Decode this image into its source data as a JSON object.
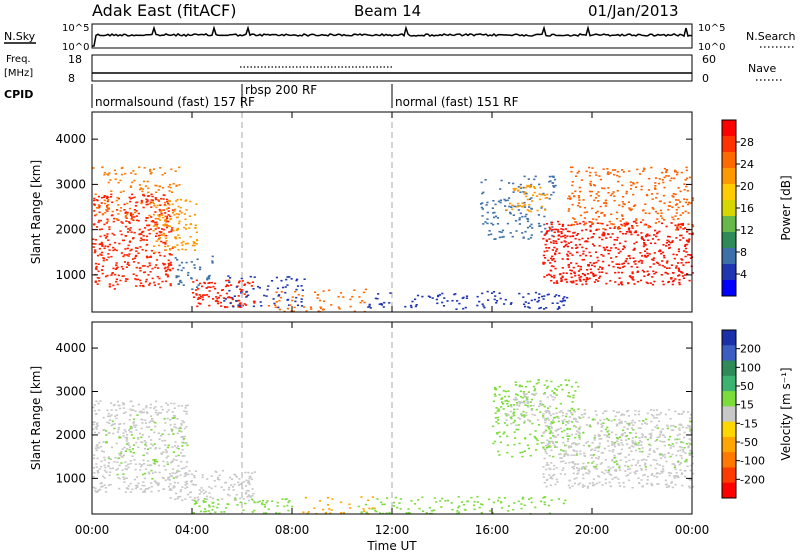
{
  "header": {
    "title": "Adak East (fitACF)",
    "beam": "Beam 14",
    "date": "01/Jan/2013"
  },
  "top_panels": {
    "nsky_label": "N.Sky",
    "nsearch_label": "N.Search",
    "freq_label_1": "Freq.",
    "freq_label_2": "[MHz]",
    "nave_label": "Nave",
    "cpid_label": "CPID",
    "noise_ticks_left": [
      "10^5",
      "10^0"
    ],
    "noise_ticks_right": [
      "10^5",
      "10^0"
    ],
    "freq_ticks_left": [
      "18",
      "8"
    ],
    "nave_ticks_right": [
      "60",
      "0"
    ]
  },
  "cpid_segments": [
    {
      "label": "normalsound (fast) 157 RF",
      "start_hour": 0,
      "end_hour": 6
    },
    {
      "label": "rbsp 200 RF",
      "start_hour": 6,
      "end_hour": 12
    },
    {
      "label": "normal (fast) 151 RF",
      "start_hour": 12,
      "end_hour": 24
    }
  ],
  "power_colorbar": {
    "title": "Power [dB]",
    "ticks": [
      "28",
      "24",
      "20",
      "16",
      "12",
      "8",
      "4"
    ],
    "colors": [
      "#ff0000",
      "#ff3300",
      "#ff6a00",
      "#ff9900",
      "#ffcc00",
      "#d6d600",
      "#66b84a",
      "#2e8b57",
      "#3d6fa8",
      "#2036b0",
      "#0000ff"
    ]
  },
  "velocity_colorbar": {
    "title": "Velocity [m s⁻¹]",
    "ticks": [
      "200",
      "100",
      "50",
      "15",
      "-15",
      "-50",
      "-100",
      "-200"
    ],
    "colors": [
      "#1a2fa8",
      "#3b5ec0",
      "#2e8b57",
      "#3cb371",
      "#7cdc3c",
      "#c8c8c8",
      "#ffd700",
      "#ffa500",
      "#ff7800",
      "#ff3c00",
      "#ff0000"
    ]
  },
  "chart_data": {
    "type": "heatmap",
    "xlabel": "Time UT",
    "x_ticks": [
      "00:00",
      "04:00",
      "08:00",
      "12:00",
      "16:00",
      "20:00",
      "00:00"
    ],
    "x_range_hours": [
      0,
      24
    ],
    "ylabel": "Slant Range [km]",
    "y_ticks": [
      "1000",
      "2000",
      "3000",
      "4000"
    ],
    "y_range_km": [
      180,
      4600
    ],
    "panels": [
      {
        "name": "Power",
        "scatter_regions": [
          {
            "t0": 0.0,
            "t1": 3.2,
            "r0": 700,
            "r1": 2800,
            "color": "#ff2200",
            "density": 0.55
          },
          {
            "t0": 0.0,
            "t1": 3.5,
            "r0": 2200,
            "r1": 3400,
            "color": "#ff7a00",
            "density": 0.25
          },
          {
            "t0": 2.4,
            "t1": 4.2,
            "r0": 1500,
            "r1": 2700,
            "color": "#ff9900",
            "density": 0.45
          },
          {
            "t0": 3.3,
            "t1": 4.8,
            "r0": 700,
            "r1": 1500,
            "color": "#3d6fa8",
            "density": 0.3
          },
          {
            "t0": 4.0,
            "t1": 6.5,
            "r0": 300,
            "r1": 900,
            "color": "#ff1a00",
            "density": 0.6
          },
          {
            "t0": 5.2,
            "t1": 8.5,
            "r0": 300,
            "r1": 1000,
            "color": "#2036b0",
            "density": 0.25
          },
          {
            "t0": 7.0,
            "t1": 11.0,
            "r0": 200,
            "r1": 700,
            "color": "#ff6a00",
            "density": 0.25
          },
          {
            "t0": 10.8,
            "t1": 19.0,
            "r0": 250,
            "r1": 650,
            "color": "#2036b0",
            "density": 0.3
          },
          {
            "t0": 15.5,
            "t1": 18.5,
            "r0": 1800,
            "r1": 3200,
            "color": "#3d6fa8",
            "density": 0.3
          },
          {
            "t0": 16.5,
            "t1": 18.2,
            "r0": 2400,
            "r1": 3000,
            "color": "#ff9900",
            "density": 0.45
          },
          {
            "t0": 18.0,
            "t1": 24.0,
            "r0": 800,
            "r1": 2200,
            "color": "#ff1000",
            "density": 0.6
          },
          {
            "t0": 19.0,
            "t1": 24.0,
            "r0": 2000,
            "r1": 3400,
            "color": "#ff6000",
            "density": 0.35
          }
        ]
      },
      {
        "name": "Velocity",
        "scatter_regions": [
          {
            "t0": 0.0,
            "t1": 3.8,
            "r0": 700,
            "r1": 2800,
            "color": "#c8c8c8",
            "density": 0.5
          },
          {
            "t0": 0.5,
            "t1": 3.8,
            "r0": 1000,
            "r1": 2500,
            "color": "#7cdc3c",
            "density": 0.12
          },
          {
            "t0": 3.0,
            "t1": 6.5,
            "r0": 500,
            "r1": 1200,
            "color": "#c8c8c8",
            "density": 0.5
          },
          {
            "t0": 4.0,
            "t1": 8.0,
            "r0": 200,
            "r1": 550,
            "color": "#7cdc3c",
            "density": 0.45
          },
          {
            "t0": 8.0,
            "t1": 11.5,
            "r0": 200,
            "r1": 600,
            "color": "#ffa500",
            "density": 0.2
          },
          {
            "t0": 10.5,
            "t1": 19.0,
            "r0": 200,
            "r1": 600,
            "color": "#7cdc3c",
            "density": 0.3
          },
          {
            "t0": 16.0,
            "t1": 19.5,
            "r0": 1500,
            "r1": 3300,
            "color": "#7cdc3c",
            "density": 0.35
          },
          {
            "t0": 16.5,
            "t1": 18.5,
            "r0": 2200,
            "r1": 3000,
            "color": "#c8c8c8",
            "density": 0.4
          },
          {
            "t0": 18.0,
            "t1": 24.0,
            "r0": 800,
            "r1": 2600,
            "color": "#c8c8c8",
            "density": 0.55
          },
          {
            "t0": 19.5,
            "t1": 24.0,
            "r0": 1200,
            "r1": 2400,
            "color": "#7cdc3c",
            "density": 0.12
          }
        ]
      }
    ]
  }
}
